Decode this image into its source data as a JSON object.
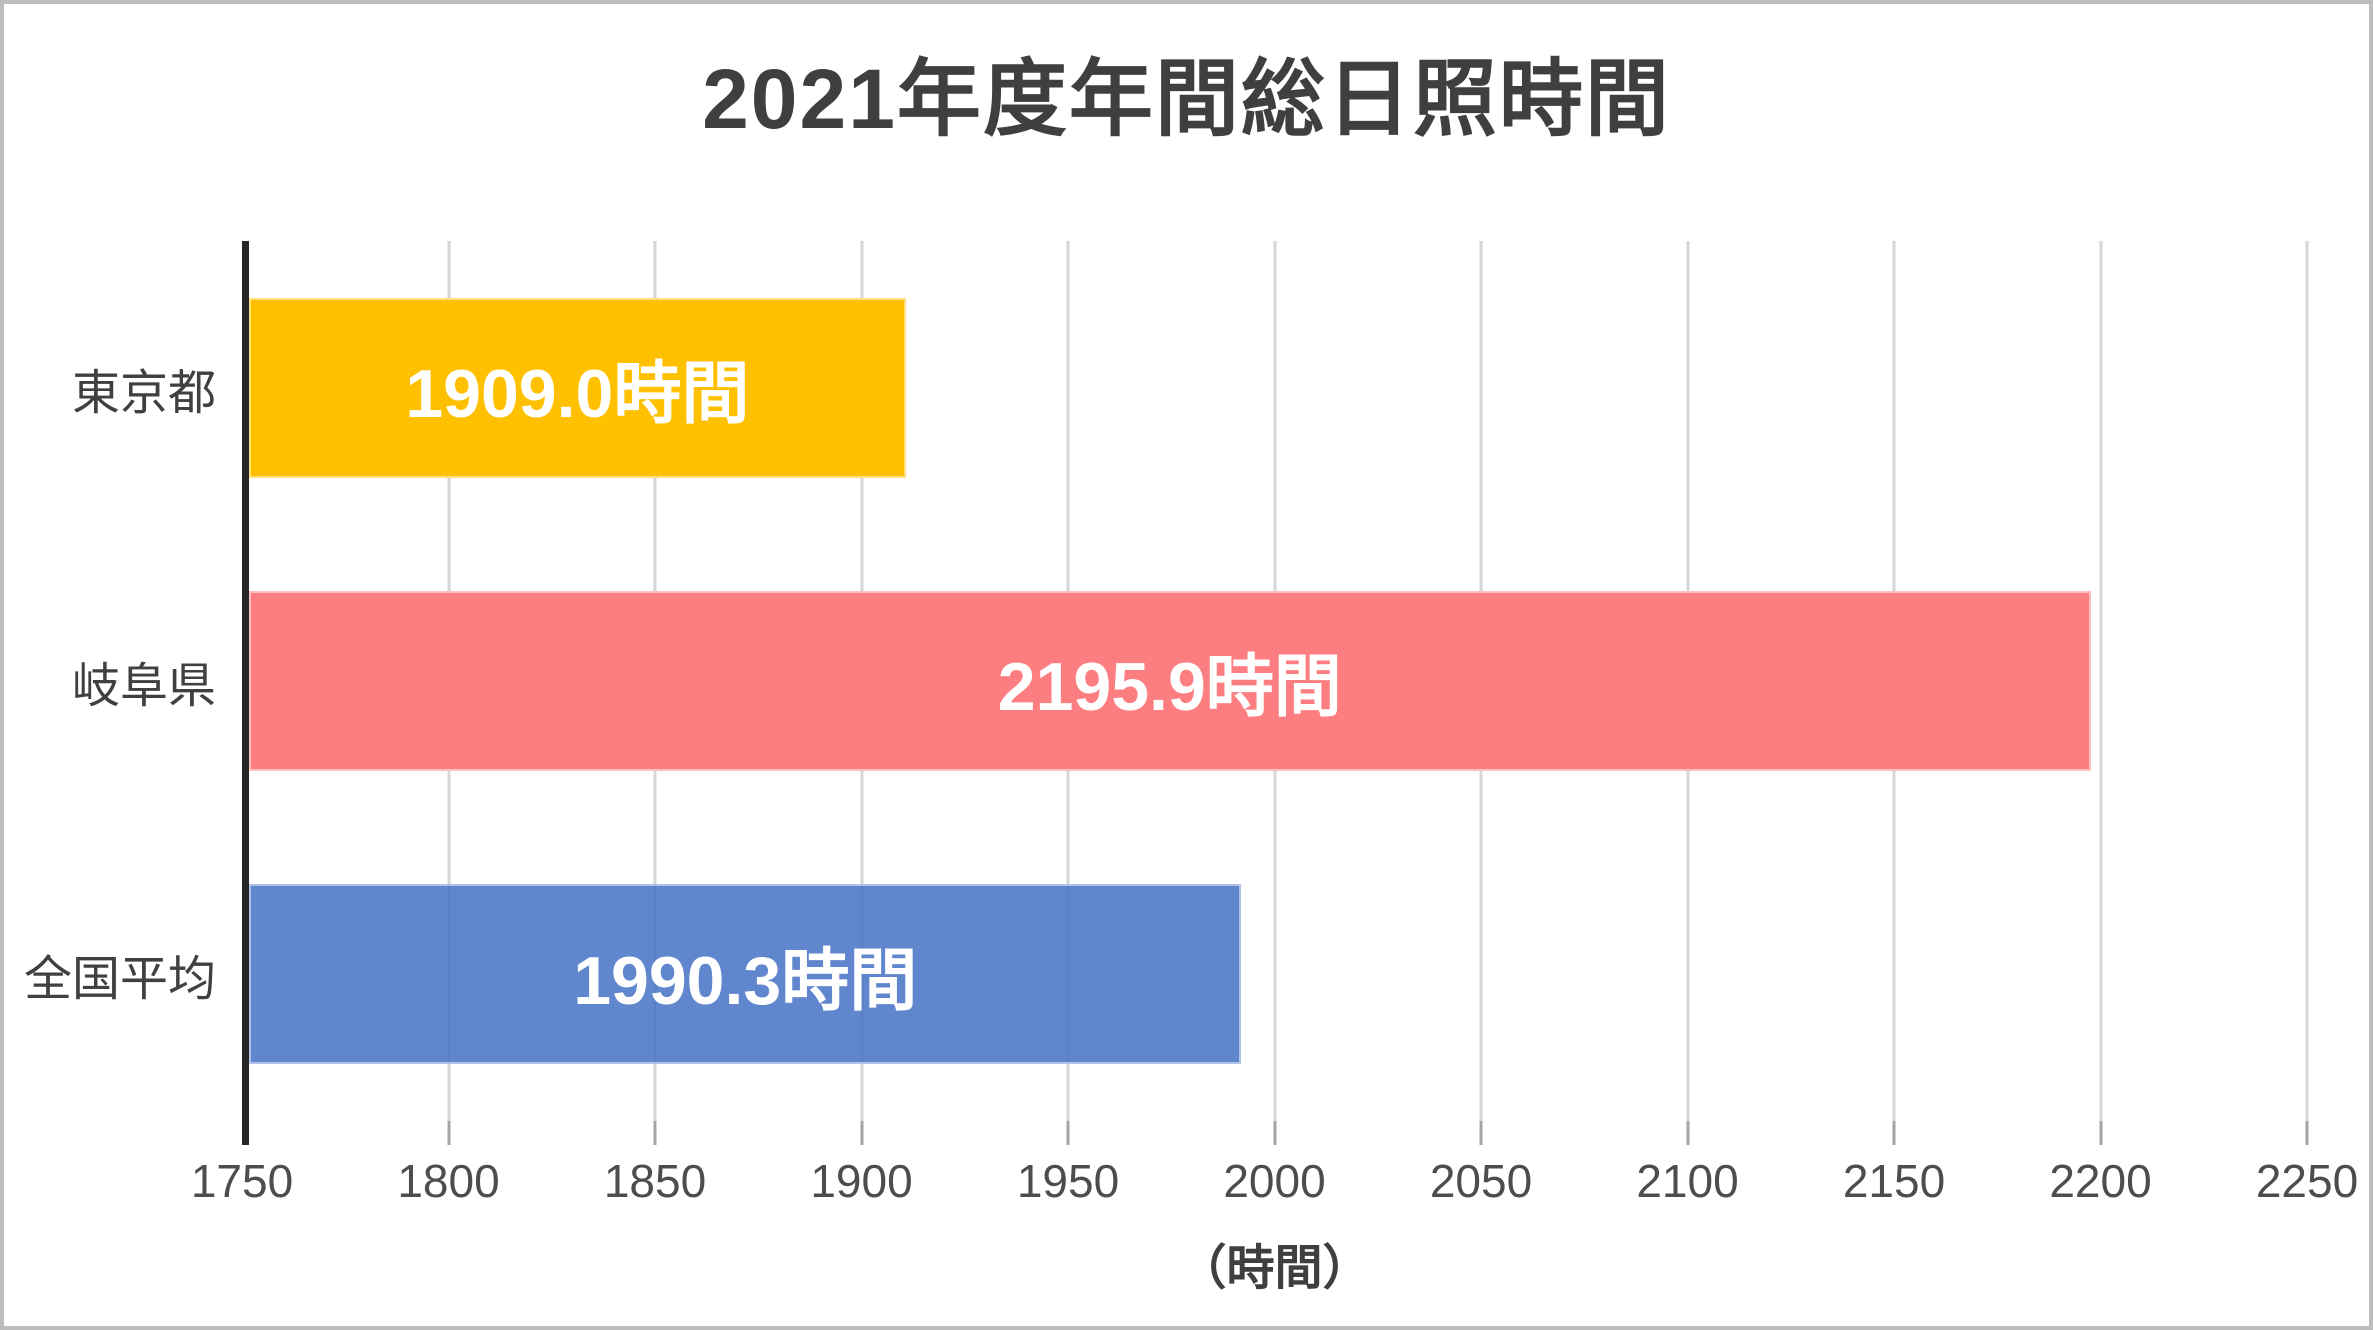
{
  "chart_data": {
    "type": "bar",
    "orientation": "horizontal",
    "title": "2021年度年間総日照時間",
    "categories": [
      "東京都",
      "岐阜県",
      "全国平均"
    ],
    "values": [
      1909.0,
      2195.9,
      1990.3
    ],
    "bar_labels": [
      "1909.0時間",
      "2195.9時間",
      "1990.3時間"
    ],
    "bar_colors": [
      "#FFC000",
      "#FC7E80",
      "rgba(68,114,196,0.85)"
    ],
    "value_label_color": "#FFFFFF",
    "xlabel": "（時間）",
    "ylabel": "",
    "xlim": [
      1750,
      2250
    ],
    "xticks": [
      1750,
      1800,
      1850,
      1900,
      1950,
      2000,
      2050,
      2100,
      2150,
      2200,
      2250
    ],
    "grid": true,
    "legend": false,
    "colors": {
      "title": "#3F3F3F",
      "category_label": "#404040",
      "tick_label": "#4D4D4D",
      "axis_line": "#262626",
      "gridline": "#D6D6D6",
      "tick_stub": "#A6A6A6",
      "frame_border": "#BDBDBD",
      "background": "#FFFFFF"
    }
  }
}
